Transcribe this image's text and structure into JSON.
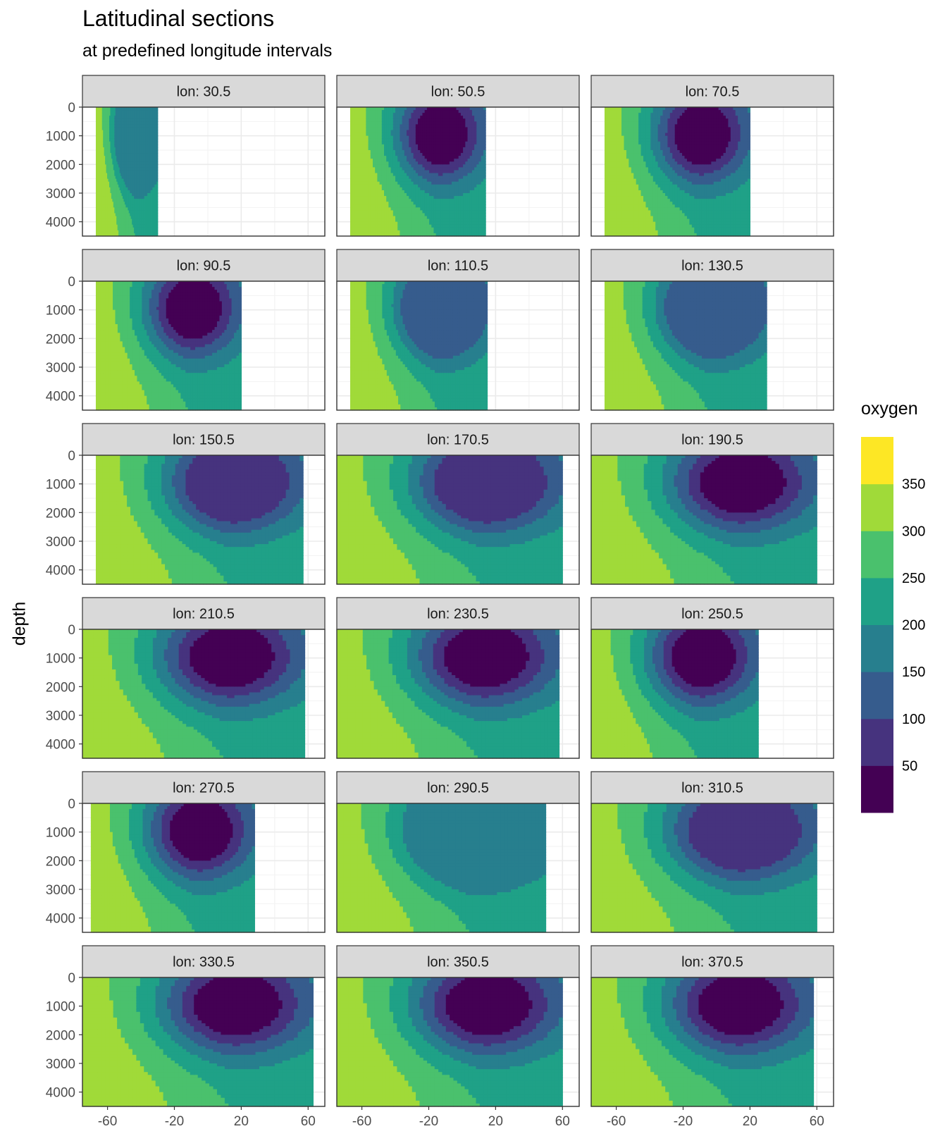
{
  "chart_data": {
    "type": "heatmap",
    "title": "Latitudinal sections",
    "subtitle": "at predefined longitude intervals",
    "xlabel": "",
    "ylabel": "depth",
    "x_ticks": [
      "-60",
      "-20",
      "20",
      "60"
    ],
    "x_tick_values": [
      -60,
      -20,
      20,
      60
    ],
    "xlim": [
      -75,
      70
    ],
    "y_ticks": [
      "0",
      "1000",
      "2000",
      "3000",
      "4000"
    ],
    "y_tick_values": [
      0,
      1000,
      2000,
      3000,
      4000
    ],
    "ylim": [
      4500,
      0
    ],
    "legend": {
      "title": "oxygen",
      "labels": [
        "350",
        "300",
        "250",
        "200",
        "150",
        "100",
        "50"
      ],
      "breaks": [
        0,
        50,
        100,
        150,
        200,
        250,
        300,
        350,
        400
      ],
      "colors": [
        "#440154",
        "#46337E",
        "#365C8D",
        "#277F8E",
        "#1FA187",
        "#4AC16D",
        "#A0DA39",
        "#FDE725"
      ]
    },
    "panels": [
      {
        "label": "lon: 30.5",
        "lat_range": [
          -67,
          -30
        ],
        "max_depth": 4500,
        "min_oxygen": 150
      },
      {
        "label": "lon: 50.5",
        "lat_range": [
          -67,
          14
        ],
        "max_depth": 4500,
        "min_oxygen": 0
      },
      {
        "label": "lon: 70.5",
        "lat_range": [
          -67,
          20
        ],
        "max_depth": 4500,
        "min_oxygen": 0
      },
      {
        "label": "lon: 90.5",
        "lat_range": [
          -67,
          20
        ],
        "max_depth": 4500,
        "min_oxygen": 0
      },
      {
        "label": "lon: 110.5",
        "lat_range": [
          -67,
          15
        ],
        "max_depth": 4500,
        "min_oxygen": 100
      },
      {
        "label": "lon: 130.5",
        "lat_range": [
          -67,
          30
        ],
        "max_depth": 4500,
        "min_oxygen": 100
      },
      {
        "label": "lon: 150.5",
        "lat_range": [
          -67,
          57
        ],
        "max_depth": 4500,
        "min_oxygen": 50
      },
      {
        "label": "lon: 170.5",
        "lat_range": [
          -75,
          60
        ],
        "max_depth": 4500,
        "min_oxygen": 50
      },
      {
        "label": "lon: 190.5",
        "lat_range": [
          -75,
          60
        ],
        "max_depth": 4500,
        "min_oxygen": 0
      },
      {
        "label": "lon: 210.5",
        "lat_range": [
          -75,
          58
        ],
        "max_depth": 4500,
        "min_oxygen": 0
      },
      {
        "label": "lon: 230.5",
        "lat_range": [
          -75,
          58
        ],
        "max_depth": 4500,
        "min_oxygen": 0
      },
      {
        "label": "lon: 250.5",
        "lat_range": [
          -75,
          25
        ],
        "max_depth": 4500,
        "min_oxygen": 0
      },
      {
        "label": "lon: 270.5",
        "lat_range": [
          -70,
          28
        ],
        "max_depth": 4500,
        "min_oxygen": 0
      },
      {
        "label": "lon: 290.5",
        "lat_range": [
          -75,
          50
        ],
        "max_depth": 4500,
        "min_oxygen": 150
      },
      {
        "label": "lon: 310.5",
        "lat_range": [
          -75,
          60
        ],
        "max_depth": 4500,
        "min_oxygen": 50
      },
      {
        "label": "lon: 330.5",
        "lat_range": [
          -75,
          63
        ],
        "max_depth": 4500,
        "min_oxygen": 0
      },
      {
        "label": "lon: 350.5",
        "lat_range": [
          -75,
          60
        ],
        "max_depth": 4500,
        "min_oxygen": 0
      },
      {
        "label": "lon: 370.5",
        "lat_range": [
          -75,
          58
        ],
        "max_depth": 4500,
        "min_oxygen": 0
      }
    ]
  }
}
